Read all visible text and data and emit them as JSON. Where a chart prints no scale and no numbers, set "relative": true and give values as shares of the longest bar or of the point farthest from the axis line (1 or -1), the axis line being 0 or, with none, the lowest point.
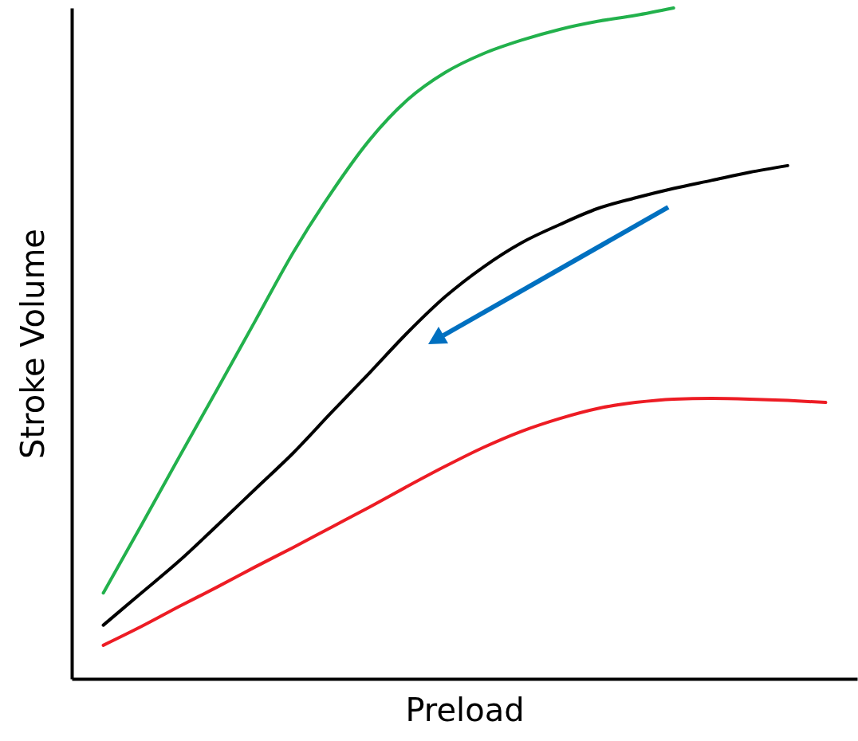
{
  "chart_data": {
    "type": "line",
    "xlabel": "Preload",
    "ylabel": "Stroke Volume",
    "relative": true,
    "categories": [
      null,
      null,
      null,
      null,
      null,
      null,
      null,
      null,
      null,
      null,
      null,
      null,
      null,
      null,
      null,
      null,
      null,
      null,
      null,
      null
    ],
    "series": [
      {
        "color": "#22b14c",
        "values": [
          0.128,
          0.229,
          0.331,
          0.432,
          0.534,
          0.636,
          0.725,
          0.803,
          0.863,
          0.904,
          0.932,
          0.952,
          0.968,
          0.98,
          0.989,
          1,
          null,
          null,
          null,
          null
        ]
      },
      {
        "color": "#000000",
        "values": [
          0.08,
          0.128,
          0.176,
          0.229,
          0.283,
          0.337,
          0.397,
          0.456,
          0.516,
          0.57,
          0.614,
          0.65,
          0.677,
          0.701,
          0.717,
          0.731,
          0.743,
          0.755,
          0.765,
          null
        ]
      },
      {
        "color": "#ed1c24",
        "values": [
          0.05,
          0.078,
          0.108,
          0.137,
          0.167,
          0.196,
          0.226,
          0.256,
          0.287,
          0.317,
          0.345,
          0.369,
          0.388,
          0.403,
          0.412,
          0.417,
          0.418,
          0.417,
          0.415,
          0.412
        ]
      }
    ]
  }
}
